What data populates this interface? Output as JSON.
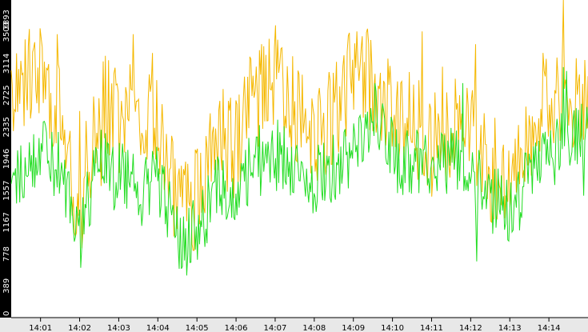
{
  "chart_data": {
    "type": "line",
    "title": "",
    "xlabel": "",
    "ylabel": "",
    "ylim": [
      0,
      3893
    ],
    "y_ticks": [
      "0",
      "389",
      "778",
      "1167",
      "1557",
      "1946",
      "2335",
      "2725",
      "3114",
      "3503",
      "3893"
    ],
    "x_ticks": [
      "14:01",
      "14:02",
      "14:03",
      "14:04",
      "14:05",
      "14:06",
      "14:07",
      "14:08",
      "14:09",
      "14:10",
      "14:11",
      "14:12",
      "14:13",
      "14:14"
    ],
    "x_range_minutes": [
      0.25,
      15.0
    ],
    "grid": false,
    "legend": "none",
    "series": [
      {
        "color": "#f5b800",
        "profile_minutes": [
          0.25,
          0.5,
          1.0,
          1.5,
          2.0,
          2.5,
          3.0,
          3.5,
          4.0,
          4.5,
          5.0,
          5.5,
          6.0,
          6.5,
          7.0,
          7.5,
          8.0,
          8.5,
          9.0,
          9.5,
          10.0,
          10.5,
          11.0,
          11.5,
          12.0,
          12.5,
          13.0,
          13.5,
          14.0,
          14.5,
          15.0
        ],
        "profile_values": [
          2800,
          2900,
          3000,
          2500,
          1300,
          2700,
          2400,
          2500,
          2300,
          1300,
          1500,
          2300,
          2000,
          2800,
          2900,
          2600,
          2200,
          2500,
          3000,
          2900,
          2500,
          2400,
          2100,
          2300,
          2300,
          1800,
          1800,
          2300,
          2800,
          2700,
          2600
        ],
        "spread": 650,
        "seed": 17
      },
      {
        "color": "#22dd22",
        "profile_minutes": [
          0.25,
          0.5,
          1.0,
          1.5,
          2.0,
          2.5,
          3.0,
          3.5,
          4.0,
          4.5,
          5.0,
          5.5,
          6.0,
          6.5,
          7.0,
          7.5,
          8.0,
          8.5,
          9.0,
          9.5,
          10.0,
          10.5,
          11.0,
          11.5,
          12.0,
          12.5,
          13.0,
          13.5,
          14.0,
          14.5,
          15.0
        ],
        "profile_values": [
          1900,
          1800,
          2100,
          1800,
          1000,
          1900,
          1700,
          1700,
          1700,
          1000,
          1000,
          1600,
          1500,
          1900,
          2000,
          1900,
          1700,
          1800,
          2000,
          2400,
          2000,
          1900,
          1900,
          1900,
          1800,
          1500,
          1300,
          1700,
          2000,
          2200,
          2200
        ],
        "spread": 450,
        "seed": 29
      }
    ]
  }
}
